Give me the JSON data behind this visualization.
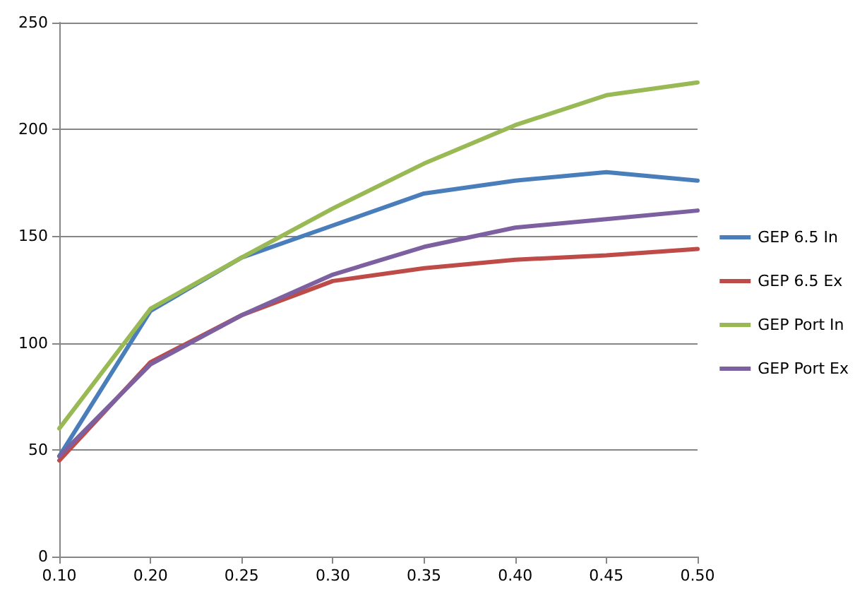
{
  "chart_data": {
    "type": "line",
    "categories": [
      "0.10",
      "0.20",
      "0.25",
      "0.30",
      "0.35",
      "0.40",
      "0.45",
      "0.50"
    ],
    "series": [
      {
        "name": "GEP 6.5 In",
        "color": "#4a7ebb",
        "values": [
          47,
          115,
          140,
          155,
          170,
          176,
          180,
          176
        ]
      },
      {
        "name": "GEP 6.5 Ex",
        "color": "#be4b48",
        "values": [
          45,
          91,
          113,
          129,
          135,
          139,
          141,
          144
        ]
      },
      {
        "name": "GEP Port In",
        "color": "#98b954",
        "values": [
          60,
          116,
          140,
          163,
          184,
          202,
          216,
          222
        ]
      },
      {
        "name": "GEP Port Ex",
        "color": "#7d60a0",
        "values": [
          47,
          90,
          113,
          132,
          145,
          154,
          158,
          162
        ]
      }
    ],
    "ylim": [
      0,
      250
    ],
    "yticks": [
      0,
      50,
      100,
      150,
      200,
      250
    ],
    "grid": "y",
    "legend": "right",
    "marker": "none"
  }
}
